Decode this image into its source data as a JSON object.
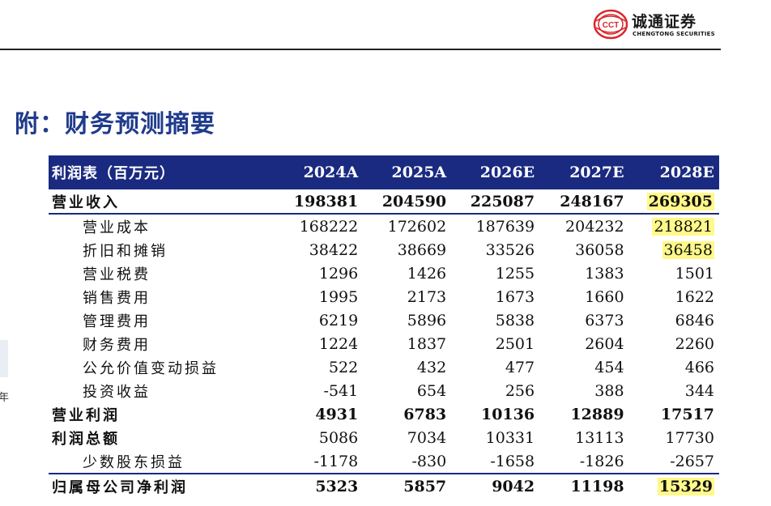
{
  "brand": {
    "name_cn": "诚通证券",
    "name_en": "CHENGTONG SECURITIES",
    "mark_text": "CCT",
    "colors": {
      "red": "#d9262c",
      "navy": "#1a2a80"
    }
  },
  "page_title": "附：财务预测摘要",
  "edge_fragment_text": "年",
  "table": {
    "header_bg": "#1a2a80",
    "highlight_color": "#fff88a",
    "columns": [
      "利润表（百万元）",
      "2024A",
      "2025A",
      "2026E",
      "2027E",
      "2028E"
    ],
    "rows": [
      {
        "label": "营业收入",
        "bold": true,
        "indent": false,
        "values": [
          "198381",
          "204590",
          "225087",
          "248167",
          "269305"
        ],
        "highlight": [
          false,
          false,
          false,
          false,
          true
        ]
      },
      {
        "label": "营业成本",
        "bold": false,
        "indent": true,
        "values": [
          "168222",
          "172602",
          "187639",
          "204232",
          "218821"
        ],
        "highlight": [
          false,
          false,
          false,
          false,
          true
        ]
      },
      {
        "label": "折旧和摊销",
        "bold": false,
        "indent": true,
        "values": [
          "38422",
          "38669",
          "33526",
          "36058",
          "36458"
        ],
        "highlight": [
          false,
          false,
          false,
          false,
          true
        ]
      },
      {
        "label": "营业税费",
        "bold": false,
        "indent": true,
        "values": [
          "1296",
          "1426",
          "1255",
          "1383",
          "1501"
        ],
        "highlight": [
          false,
          false,
          false,
          false,
          false
        ]
      },
      {
        "label": "销售费用",
        "bold": false,
        "indent": true,
        "values": [
          "1995",
          "2173",
          "1673",
          "1660",
          "1622"
        ],
        "highlight": [
          false,
          false,
          false,
          false,
          false
        ]
      },
      {
        "label": "管理费用",
        "bold": false,
        "indent": true,
        "values": [
          "6219",
          "5896",
          "5838",
          "6373",
          "6846"
        ],
        "highlight": [
          false,
          false,
          false,
          false,
          false
        ]
      },
      {
        "label": "财务费用",
        "bold": false,
        "indent": true,
        "values": [
          "1224",
          "1837",
          "2501",
          "2604",
          "2260"
        ],
        "highlight": [
          false,
          false,
          false,
          false,
          false
        ]
      },
      {
        "label": "公允价值变动损益",
        "bold": false,
        "indent": true,
        "values": [
          "522",
          "432",
          "477",
          "454",
          "466"
        ],
        "highlight": [
          false,
          false,
          false,
          false,
          false
        ]
      },
      {
        "label": "投资收益",
        "bold": false,
        "indent": true,
        "values": [
          "-541",
          "654",
          "256",
          "388",
          "344"
        ],
        "highlight": [
          false,
          false,
          false,
          false,
          false
        ]
      },
      {
        "label": "营业利润",
        "bold": true,
        "indent": false,
        "values": [
          "4931",
          "6783",
          "10136",
          "12889",
          "17517"
        ],
        "highlight": [
          false,
          false,
          false,
          false,
          false
        ]
      },
      {
        "label": "利润总额",
        "bold": true,
        "indent": false,
        "mixed": true,
        "values": [
          "5086",
          "7034",
          "10331",
          "13113",
          "17730"
        ],
        "highlight": [
          false,
          false,
          false,
          false,
          false
        ]
      },
      {
        "label": "少数股东损益",
        "bold": false,
        "indent": true,
        "values": [
          "-1178",
          "-830",
          "-1658",
          "-1826",
          "-2657"
        ],
        "highlight": [
          false,
          false,
          false,
          false,
          false
        ]
      },
      {
        "label": "归属母公司净利润",
        "bold": true,
        "indent": false,
        "values": [
          "5323",
          "5857",
          "9042",
          "11198",
          "15329"
        ],
        "highlight": [
          false,
          false,
          false,
          false,
          true
        ]
      }
    ]
  }
}
